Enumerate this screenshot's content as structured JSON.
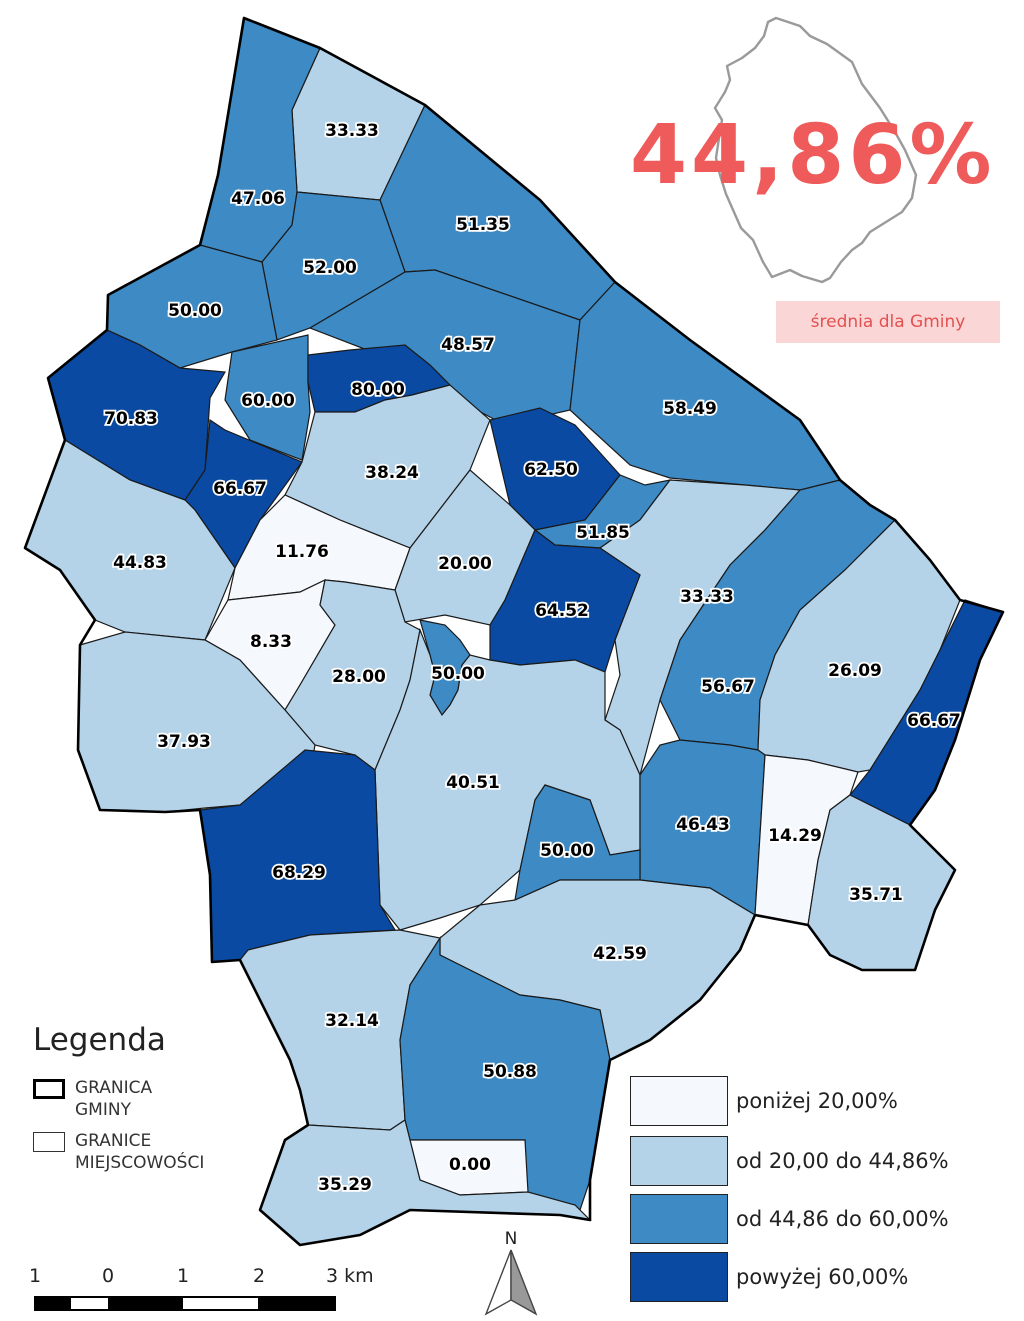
{
  "overall_average": {
    "value": "44,86%",
    "caption": "średnia dla Gminy"
  },
  "regions": [
    {
      "label": "33.33",
      "class": "c1"
    },
    {
      "label": "47.06",
      "class": "c2"
    },
    {
      "label": "51.35",
      "class": "c2"
    },
    {
      "label": "52.00",
      "class": "c2"
    },
    {
      "label": "50.00",
      "class": "c2"
    },
    {
      "label": "48.57",
      "class": "c2"
    },
    {
      "label": "60.00",
      "class": "c2"
    },
    {
      "label": "80.00",
      "class": "c3"
    },
    {
      "label": "70.83",
      "class": "c3"
    },
    {
      "label": "58.49",
      "class": "c2"
    },
    {
      "label": "66.67",
      "class": "c3"
    },
    {
      "label": "38.24",
      "class": "c1"
    },
    {
      "label": "62.50",
      "class": "c3"
    },
    {
      "label": "51.85",
      "class": "c2"
    },
    {
      "label": "44.83",
      "class": "c1"
    },
    {
      "label": "11.76",
      "class": "c0"
    },
    {
      "label": "20.00",
      "class": "c1"
    },
    {
      "label": "33.33",
      "class": "c1"
    },
    {
      "label": "64.52",
      "class": "c3"
    },
    {
      "label": "8.33",
      "class": "c0"
    },
    {
      "label": "28.00",
      "class": "c1"
    },
    {
      "label": "50.00",
      "class": "c2"
    },
    {
      "label": "56.67",
      "class": "c2"
    },
    {
      "label": "26.09",
      "class": "c1"
    },
    {
      "label": "66.67",
      "class": "c3"
    },
    {
      "label": "37.93",
      "class": "c1"
    },
    {
      "label": "40.51",
      "class": "c1"
    },
    {
      "label": "46.43",
      "class": "c2"
    },
    {
      "label": "14.29",
      "class": "c0"
    },
    {
      "label": "50.00",
      "class": "c2"
    },
    {
      "label": "68.29",
      "class": "c3"
    },
    {
      "label": "35.71",
      "class": "c1"
    },
    {
      "label": "42.59",
      "class": "c1"
    },
    {
      "label": "32.14",
      "class": "c1"
    },
    {
      "label": "50.88",
      "class": "c2"
    },
    {
      "label": "0.00",
      "class": "c0"
    },
    {
      "label": "35.29",
      "class": "c1"
    }
  ],
  "legend": {
    "title": "Legenda",
    "boundary_label": "GRANICA\nGMINY",
    "locality_label": "GRANICE\nMIEJSCOWOŚCI"
  },
  "classes": [
    {
      "label": "poniżej 20,00%",
      "color": "#f5f9fe"
    },
    {
      "label": "od 20,00 do 44,86%",
      "color": "#b4d3e9"
    },
    {
      "label": "od 44,86 do 60,00%",
      "color": "#3d8ac4"
    },
    {
      "label": "powyżej 60,00%",
      "color": "#0b4aa2"
    }
  ],
  "scale": {
    "ticks": [
      "1",
      "0",
      "1",
      "2",
      "3 km"
    ]
  },
  "north_arrow_label": "N"
}
